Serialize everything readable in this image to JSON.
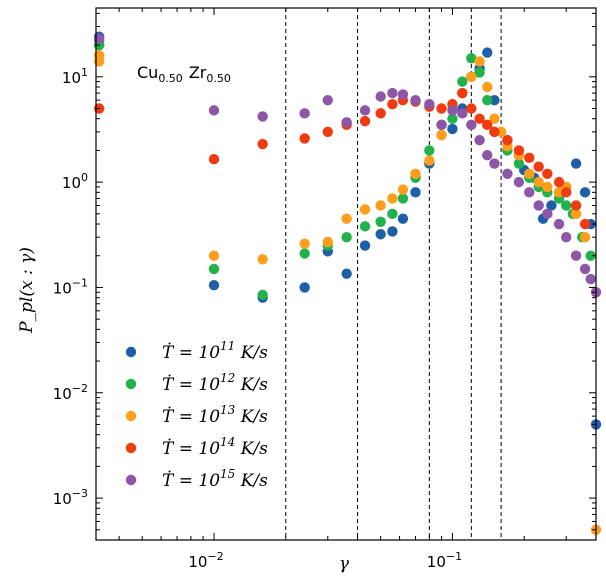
{
  "chart_data": {
    "type": "scatter",
    "title": "",
    "xlabel": "γ",
    "ylabel": "P_pl(x : γ)",
    "xscale": "log",
    "yscale": "log",
    "xlim": [
      0.0032,
      0.4
    ],
    "ylim": [
      0.0004,
      45
    ],
    "annotation": {
      "base1": "Cu",
      "sub1": "0.50",
      "base2": "Zr",
      "sub2": "0.50"
    },
    "legend_placement": "lower-left",
    "grid": false,
    "x_ticks": [
      {
        "value": 0.01,
        "base": "10",
        "exp": "−2"
      },
      {
        "value": 0.1,
        "base": "10",
        "exp": "−1"
      }
    ],
    "y_ticks": [
      {
        "value": 0.001,
        "base": "10",
        "exp": "−3"
      },
      {
        "value": 0.01,
        "base": "10",
        "exp": "−2"
      },
      {
        "value": 0.1,
        "base": "10",
        "exp": "−1"
      },
      {
        "value": 1,
        "base": "10",
        "exp": "0"
      },
      {
        "value": 10,
        "base": "10",
        "exp": "1"
      }
    ],
    "vlines": [
      0.02,
      0.04,
      0.08,
      0.12,
      0.16
    ],
    "series": [
      {
        "label_pre": "Ṫ = 10",
        "exp": "11",
        "label_post": " K/s",
        "color": "#1f5fa8",
        "x": [
          0.0033,
          0.0033,
          0.01,
          0.016,
          0.024,
          0.03,
          0.036,
          0.043,
          0.05,
          0.056,
          0.062,
          0.07,
          0.08,
          0.09,
          0.1,
          0.11,
          0.12,
          0.13,
          0.14,
          0.15,
          0.17,
          0.19,
          0.2,
          0.22,
          0.24,
          0.26,
          0.28,
          0.3,
          0.33,
          0.36,
          0.38,
          0.4
        ],
        "y": [
          24,
          20,
          0.105,
          0.08,
          0.1,
          0.22,
          0.135,
          0.25,
          0.32,
          0.34,
          0.45,
          0.8,
          1.5,
          2.8,
          3.2,
          5,
          10,
          12,
          17,
          6,
          2.5,
          1.8,
          1.3,
          1.1,
          0.45,
          0.6,
          0.8,
          0.9,
          1.5,
          0.8,
          0.4,
          0.005
        ]
      },
      {
        "label_pre": "Ṫ = 10",
        "exp": "12",
        "label_post": " K/s",
        "color": "#22b24c",
        "x": [
          0.0033,
          0.0033,
          0.01,
          0.016,
          0.024,
          0.03,
          0.036,
          0.043,
          0.05,
          0.056,
          0.062,
          0.07,
          0.08,
          0.09,
          0.1,
          0.11,
          0.12,
          0.13,
          0.14,
          0.15,
          0.17,
          0.19,
          0.21,
          0.23,
          0.25,
          0.28,
          0.3,
          0.32,
          0.35,
          0.38
        ],
        "y": [
          22,
          20,
          0.15,
          0.085,
          0.21,
          0.25,
          0.3,
          0.38,
          0.42,
          0.5,
          0.7,
          1.1,
          2,
          3.5,
          4,
          9,
          15,
          11,
          6,
          3,
          2,
          1.5,
          1.1,
          0.9,
          0.8,
          0.7,
          0.6,
          0.5,
          0.3,
          0.2
        ]
      },
      {
        "label_pre": "Ṫ = 10",
        "exp": "13",
        "label_post": " K/s",
        "color": "#ff9e1b",
        "x": [
          0.0033,
          0.0033,
          0.01,
          0.016,
          0.024,
          0.03,
          0.036,
          0.043,
          0.05,
          0.056,
          0.062,
          0.07,
          0.08,
          0.09,
          0.1,
          0.11,
          0.12,
          0.13,
          0.14,
          0.15,
          0.16,
          0.17,
          0.19,
          0.21,
          0.23,
          0.25,
          0.28,
          0.3,
          0.33,
          0.36,
          0.4
        ],
        "y": [
          16,
          14,
          0.2,
          0.185,
          0.26,
          0.27,
          0.45,
          0.55,
          0.6,
          0.7,
          0.85,
          1.2,
          1.6,
          2.8,
          5,
          7,
          10,
          14,
          8,
          4,
          3,
          2.2,
          1.8,
          1.2,
          1,
          0.9,
          0.8,
          0.9,
          0.5,
          0.3,
          0.0005
        ]
      },
      {
        "label_pre": "Ṫ = 10",
        "exp": "14",
        "label_post": " K/s",
        "color": "#f03a10",
        "x": [
          0.0033,
          0.01,
          0.016,
          0.024,
          0.03,
          0.036,
          0.043,
          0.05,
          0.056,
          0.062,
          0.07,
          0.08,
          0.09,
          0.1,
          0.11,
          0.12,
          0.13,
          0.14,
          0.15,
          0.17,
          0.19,
          0.21,
          0.23,
          0.25,
          0.28,
          0.3,
          0.33,
          0.36
        ],
        "y": [
          5,
          1.65,
          2.3,
          2.6,
          3,
          3.5,
          3.8,
          4.5,
          5.5,
          6,
          5.8,
          5.2,
          5,
          5.5,
          7,
          5,
          4,
          3.5,
          3,
          2.5,
          2,
          1.7,
          1.4,
          1.2,
          1,
          0.8,
          0.6,
          0.4
        ]
      },
      {
        "label_pre": "Ṫ = 10",
        "exp": "15",
        "label_post": " K/s",
        "color": "#8e56a6",
        "x": [
          0.0033,
          0.01,
          0.016,
          0.024,
          0.03,
          0.036,
          0.043,
          0.05,
          0.056,
          0.062,
          0.07,
          0.08,
          0.09,
          0.1,
          0.11,
          0.12,
          0.13,
          0.14,
          0.15,
          0.17,
          0.19,
          0.21,
          0.23,
          0.25,
          0.28,
          0.3,
          0.33,
          0.36,
          0.38,
          0.4
        ],
        "y": [
          23,
          4.8,
          4.2,
          4.5,
          6,
          3.7,
          4.8,
          6.5,
          7,
          6.8,
          6,
          5.5,
          3.5,
          4.8,
          4.5,
          3.5,
          2.5,
          1.8,
          1.5,
          1.2,
          1,
          0.8,
          0.6,
          0.5,
          0.4,
          0.3,
          0.2,
          0.15,
          0.12,
          0.09
        ]
      }
    ]
  }
}
